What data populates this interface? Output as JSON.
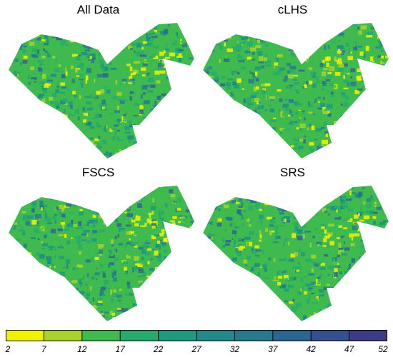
{
  "panels": [
    {
      "title": "All Data"
    },
    {
      "title": "cLHS"
    },
    {
      "title": "FSCS"
    },
    {
      "title": "SRS"
    }
  ],
  "legend": {
    "ticks": [
      "2",
      "7",
      "12",
      "17",
      "22",
      "27",
      "32",
      "37",
      "42",
      "47",
      "52"
    ],
    "colors": [
      "#f2f200",
      "#a6d42a",
      "#3fba4f",
      "#27ab6b",
      "#1f9a7e",
      "#1f8a88",
      "#277a8d",
      "#2c6690",
      "#34508e",
      "#3b3b86",
      "#3a1f66"
    ]
  }
}
